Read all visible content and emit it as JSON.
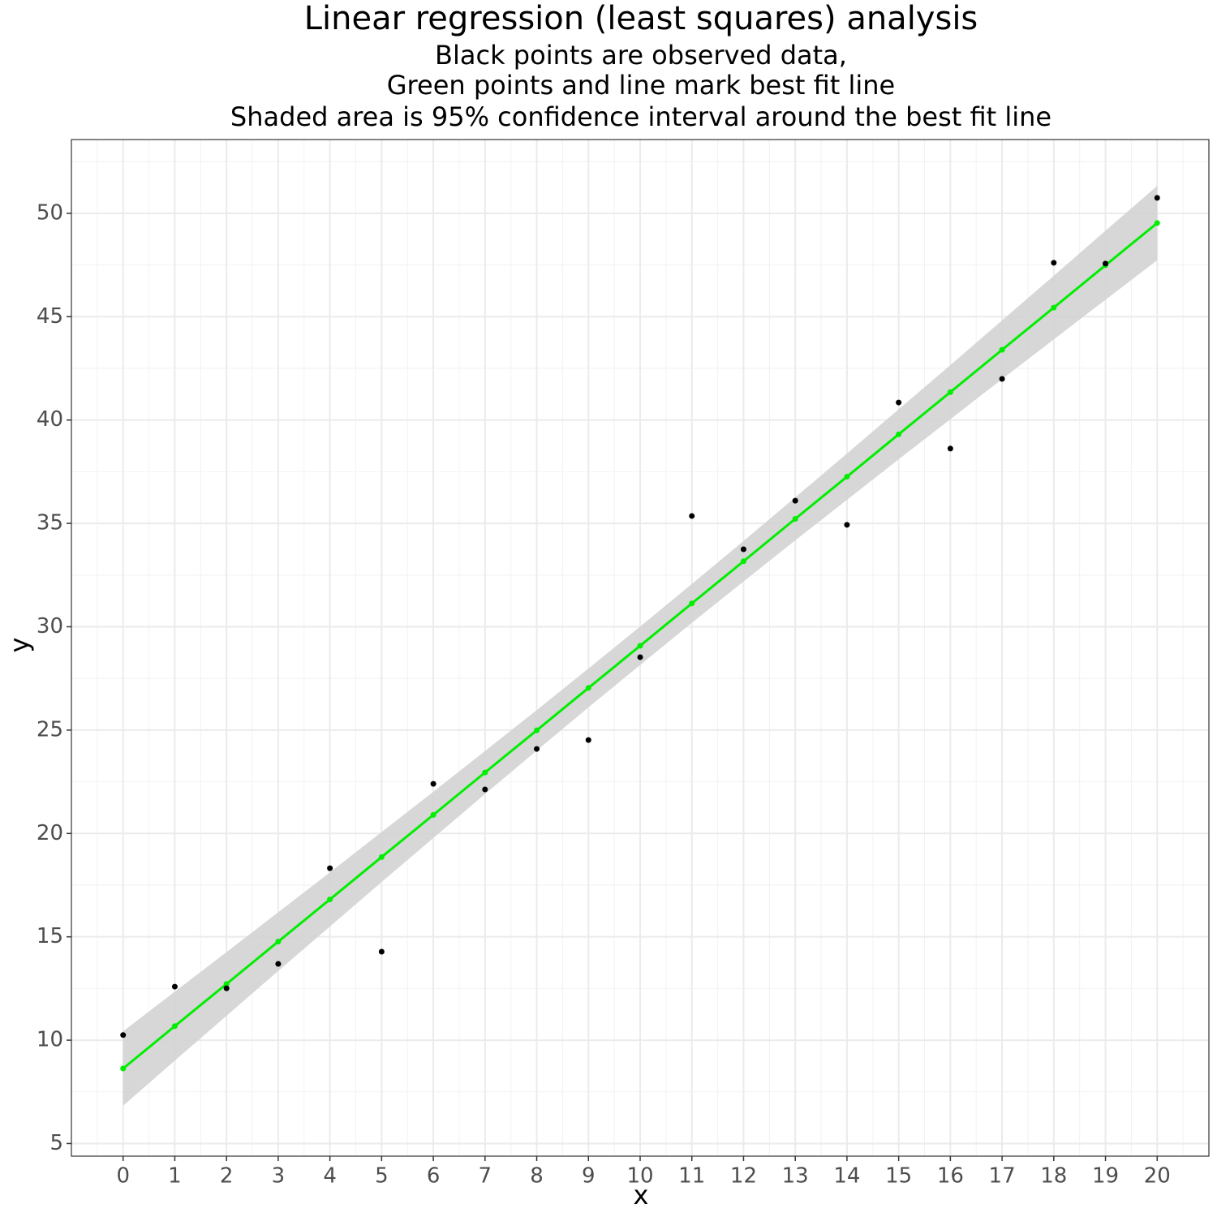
{
  "chart_data": {
    "type": "scatter",
    "title": "Linear regression (least squares) analysis",
    "subtitle": [
      "Black points are observed data,",
      "Green points and line mark best fit line",
      "Shaded area is 95% confidence interval around the best fit line"
    ],
    "x_label": "x",
    "y_label": "y",
    "x": [
      0,
      1,
      2,
      3,
      4,
      5,
      6,
      7,
      8,
      9,
      10,
      11,
      12,
      13,
      14,
      15,
      16,
      17,
      18,
      19,
      20
    ],
    "observed": {
      "color": "#000000",
      "values": [
        10.25,
        12.59,
        12.51,
        13.69,
        18.32,
        14.28,
        22.4,
        22.13,
        24.09,
        24.52,
        28.53,
        35.36,
        33.75,
        36.1,
        34.93,
        40.85,
        38.62,
        41.99,
        47.61,
        47.57,
        50.75
      ]
    },
    "fitted": {
      "color": "#00ee00",
      "values": [
        8.63,
        10.68,
        12.72,
        14.77,
        16.81,
        18.86,
        20.9,
        22.95,
        24.99,
        27.04,
        29.08,
        31.13,
        33.17,
        35.22,
        37.26,
        39.31,
        41.35,
        43.4,
        45.44,
        47.49,
        49.53
      ]
    },
    "confidence_band": {
      "color": "#d3d3d3",
      "lower": [
        6.83,
        9.01,
        11.18,
        13.35,
        15.5,
        17.65,
        19.78,
        21.91,
        24.01,
        26.1,
        28.15,
        30.19,
        32.19,
        34.18,
        36.14,
        38.1,
        40.04,
        41.98,
        43.9,
        45.82,
        47.73
      ],
      "upper": [
        10.43,
        12.35,
        14.26,
        16.19,
        18.12,
        20.07,
        22.02,
        23.99,
        25.97,
        27.98,
        30.01,
        32.07,
        34.15,
        36.26,
        38.38,
        40.52,
        42.66,
        44.82,
        46.98,
        49.16,
        51.33
      ]
    },
    "xlim": [
      -1,
      21
    ],
    "ylim": [
      4.39,
      53.57
    ],
    "xticks": [
      0,
      1,
      2,
      3,
      4,
      5,
      6,
      7,
      8,
      9,
      10,
      11,
      12,
      13,
      14,
      15,
      16,
      17,
      18,
      19,
      20
    ],
    "yticks": [
      5,
      10,
      15,
      20,
      25,
      30,
      35,
      40,
      45,
      50
    ],
    "grid": true
  }
}
